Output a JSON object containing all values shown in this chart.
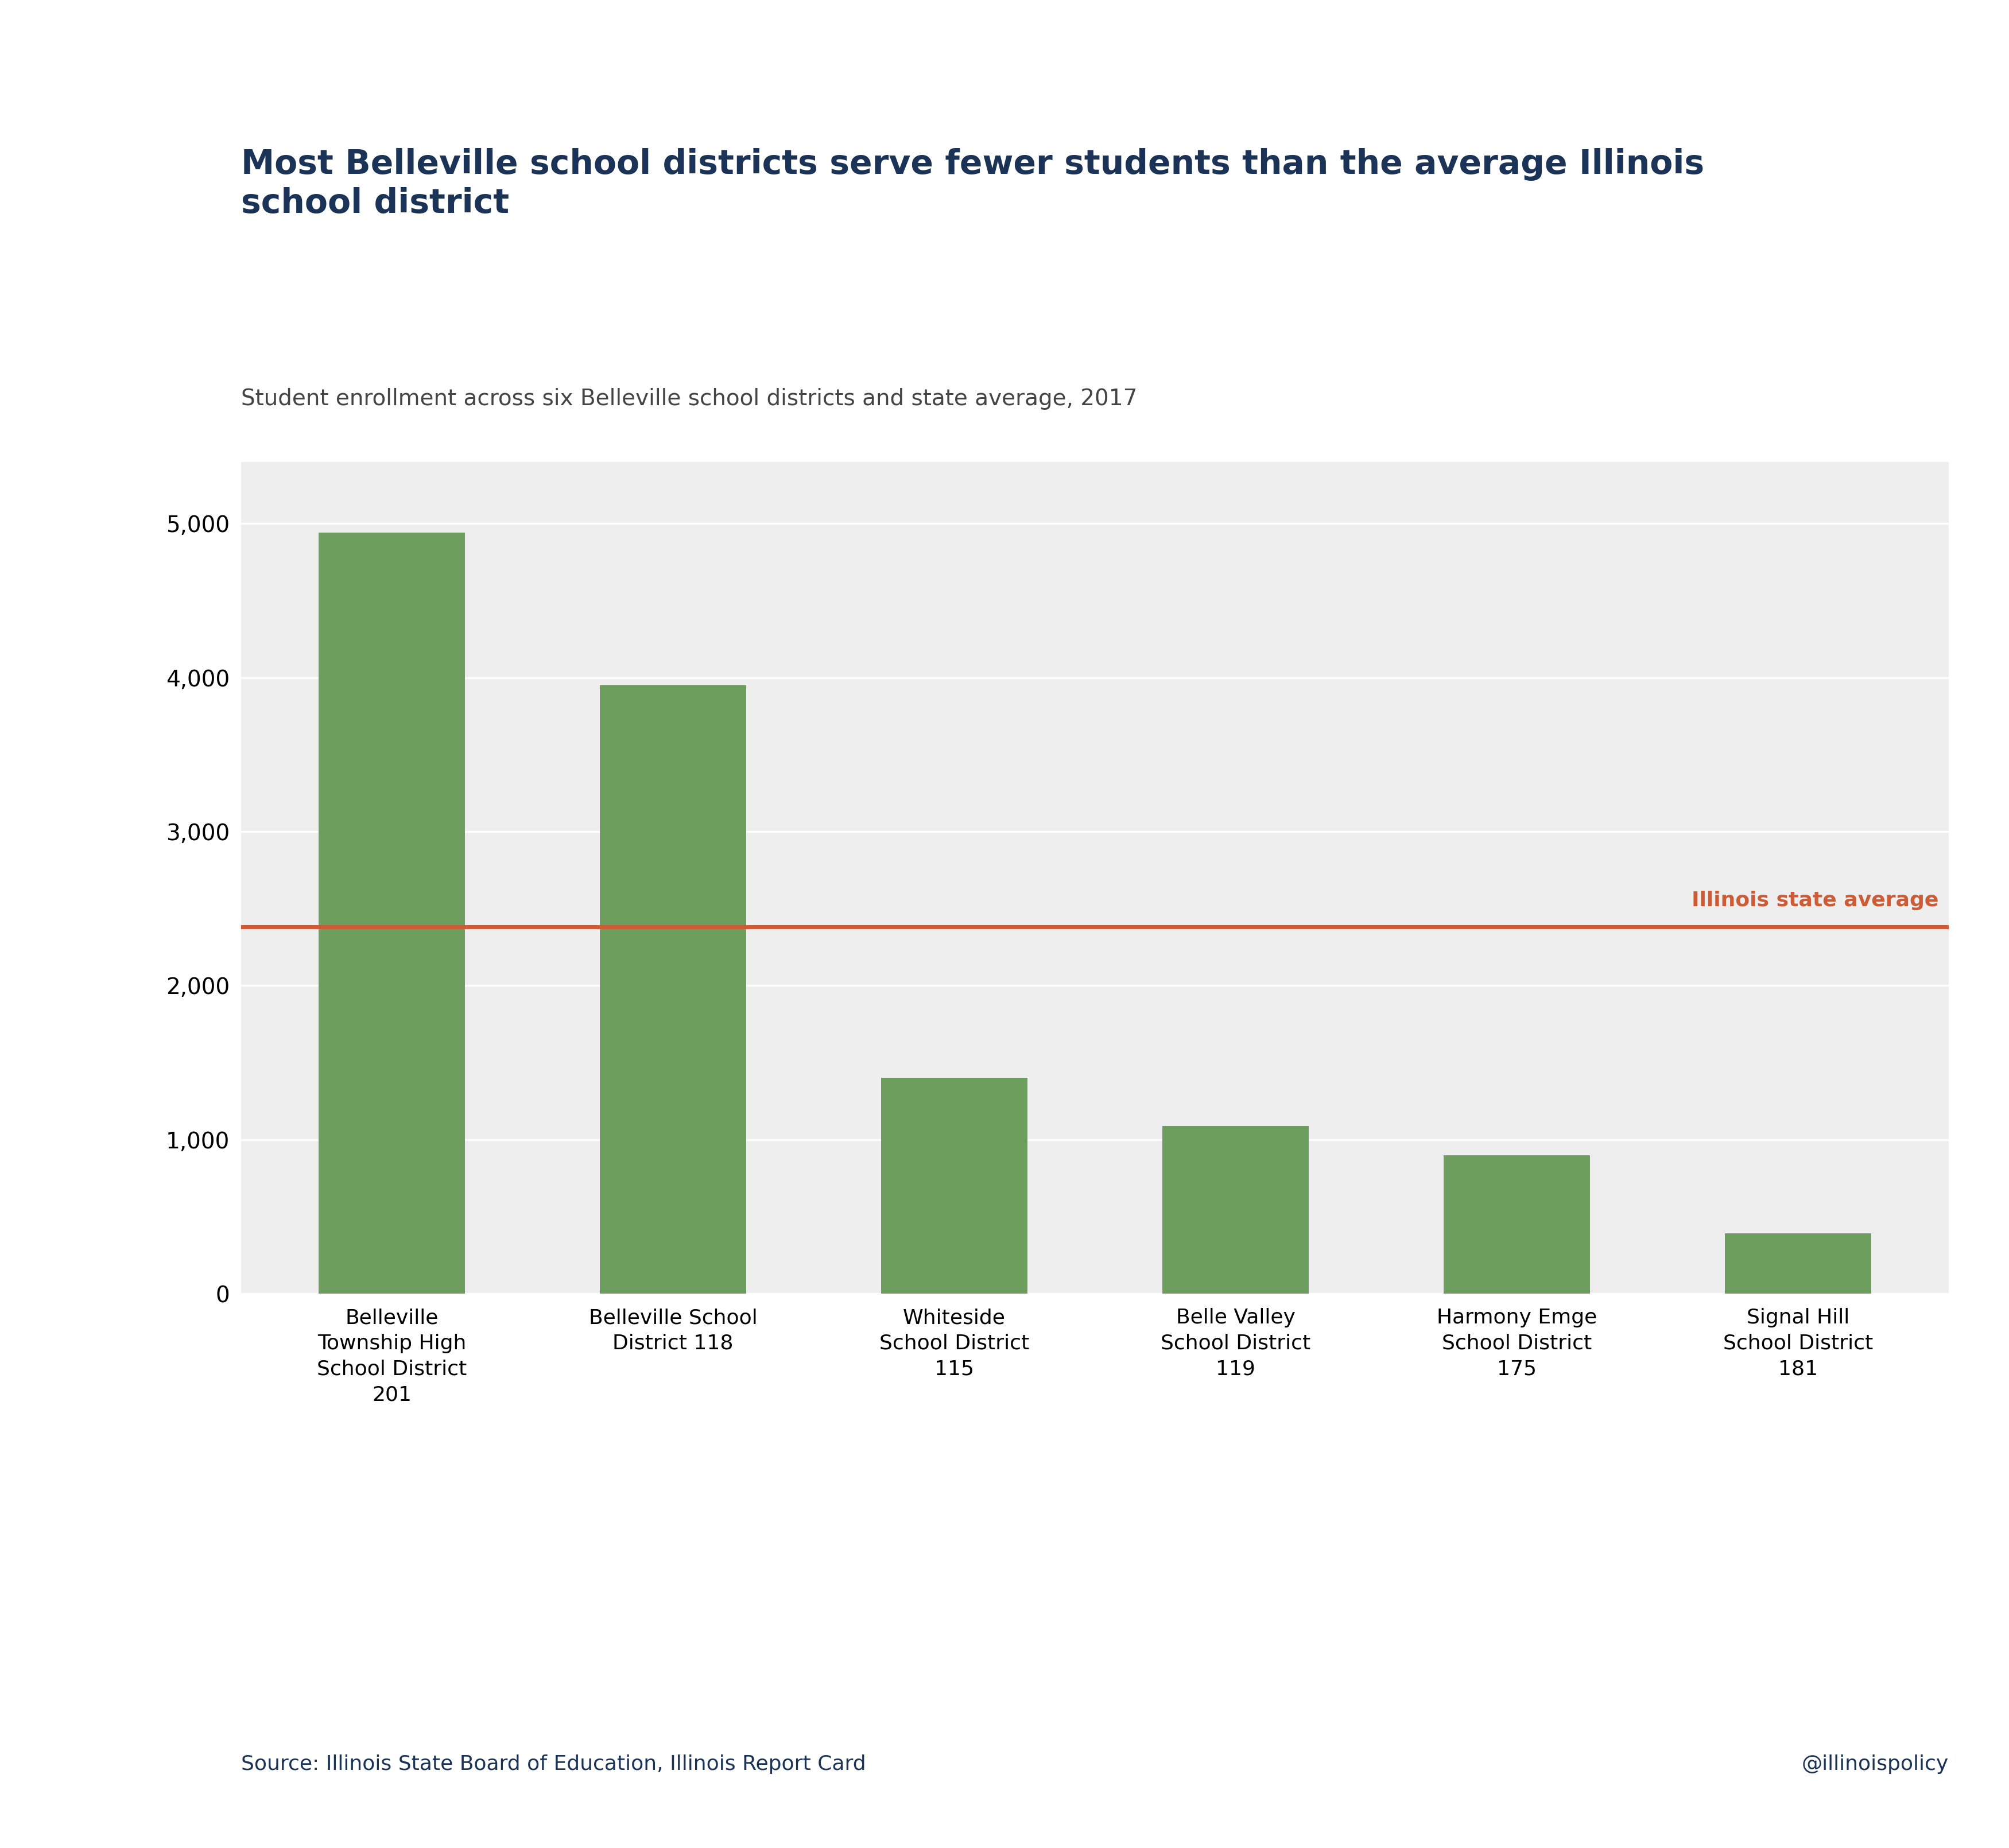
{
  "title": "Most Belleville school districts serve fewer students than the average Illinois\nschool district",
  "subtitle": "Student enrollment across six Belleville school districts and state average, 2017",
  "categories": [
    "Belleville\nTownship High\nSchool District\n201",
    "Belleville School\nDistrict 118",
    "Whiteside\nSchool District\n115",
    "Belle Valley\nSchool District\n119",
    "Harmony Emge\nSchool District\n175",
    "Signal Hill\nSchool District\n181"
  ],
  "values": [
    4940,
    3950,
    1400,
    1090,
    900,
    390
  ],
  "bar_color": "#6e9e5e",
  "state_average": 2380,
  "state_average_color": "#cd5b35",
  "state_average_label": "Illinois state average",
  "ylim": [
    0,
    5400
  ],
  "yticks": [
    0,
    1000,
    2000,
    3000,
    4000,
    5000
  ],
  "ytick_labels": [
    "0",
    "1,000",
    "2,000",
    "3,000",
    "4,000",
    "5,000"
  ],
  "title_color": "#1a3356",
  "subtitle_color": "#444444",
  "source_text": "Source: Illinois State Board of Education, Illinois Report Card",
  "source_color": "#1a3356",
  "watermark": "@illinoispolicy",
  "watermark_color": "#1a3356",
  "background_color": "#ffffff",
  "plot_bg_color": "#eeeeee",
  "title_fontsize": 42,
  "subtitle_fontsize": 28,
  "tick_fontsize": 28,
  "xtick_fontsize": 26,
  "source_fontsize": 26,
  "avg_label_fontsize": 26
}
